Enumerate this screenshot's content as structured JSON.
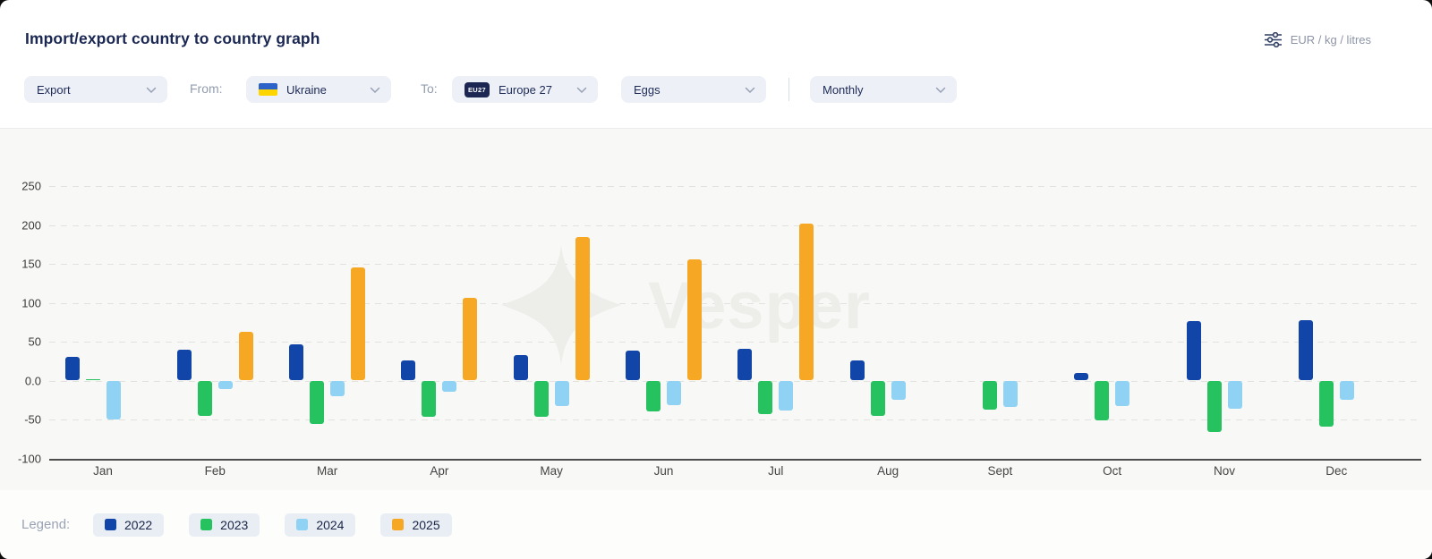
{
  "header": {
    "title": "Import/export country to country graph",
    "units_label": "EUR / kg / litres"
  },
  "filters": {
    "direction": {
      "value": "Export"
    },
    "from_label": "From:",
    "from_country": {
      "value": "Ukraine",
      "flag": "ukraine-flag"
    },
    "to_label": "To:",
    "to_country": {
      "value": "Europe 27",
      "badge": "EU27"
    },
    "product": {
      "value": "Eggs"
    },
    "frequency": {
      "value": "Monthly"
    }
  },
  "watermark": {
    "text": "Vesper"
  },
  "legend": {
    "label": "Legend:",
    "items": [
      {
        "year": "2022",
        "color": "#1245a8"
      },
      {
        "year": "2023",
        "color": "#25c25f"
      },
      {
        "year": "2024",
        "color": "#8fd2f3"
      },
      {
        "year": "2025",
        "color": "#f6a724"
      }
    ]
  },
  "chart_data": {
    "type": "bar",
    "title": "Import/export country to country graph",
    "xlabel": "",
    "ylabel": "EUR / kg / litres",
    "ylim": [
      -100,
      250
    ],
    "grid": "dashed-horizontal",
    "legend_position": "bottom",
    "categories": [
      "Jan",
      "Feb",
      "Mar",
      "Apr",
      "May",
      "Jun",
      "Jul",
      "Aug",
      "Sept",
      "Oct",
      "Nov",
      "Dec"
    ],
    "yticks": [
      {
        "v": 250,
        "label": "250"
      },
      {
        "v": 200,
        "label": "200"
      },
      {
        "v": 150,
        "label": "150"
      },
      {
        "v": 100,
        "label": "100"
      },
      {
        "v": 50,
        "label": "50"
      },
      {
        "v": 0,
        "label": "0.0"
      },
      {
        "v": -50,
        "label": "-50"
      },
      {
        "v": -100,
        "label": "-100",
        "axis": true
      }
    ],
    "series": [
      {
        "name": "2022",
        "color": "#1245a8",
        "values": [
          30,
          40,
          47,
          26,
          33,
          38,
          41,
          26,
          0,
          10,
          77,
          78
        ]
      },
      {
        "name": "2023",
        "color": "#25c25f",
        "values": [
          2,
          -45,
          -56,
          -46,
          -47,
          -40,
          -43,
          -45,
          -37,
          -51,
          -66,
          -59
        ]
      },
      {
        "name": "2024",
        "color": "#8fd2f3",
        "values": [
          -50,
          -11,
          -20,
          -14,
          -33,
          -32,
          -39,
          -25,
          -34,
          -33,
          -36,
          -25
        ]
      },
      {
        "name": "2025",
        "color": "#f6a724",
        "values": [
          null,
          63,
          145,
          106,
          184,
          156,
          202,
          null,
          null,
          null,
          null,
          null
        ]
      }
    ]
  }
}
